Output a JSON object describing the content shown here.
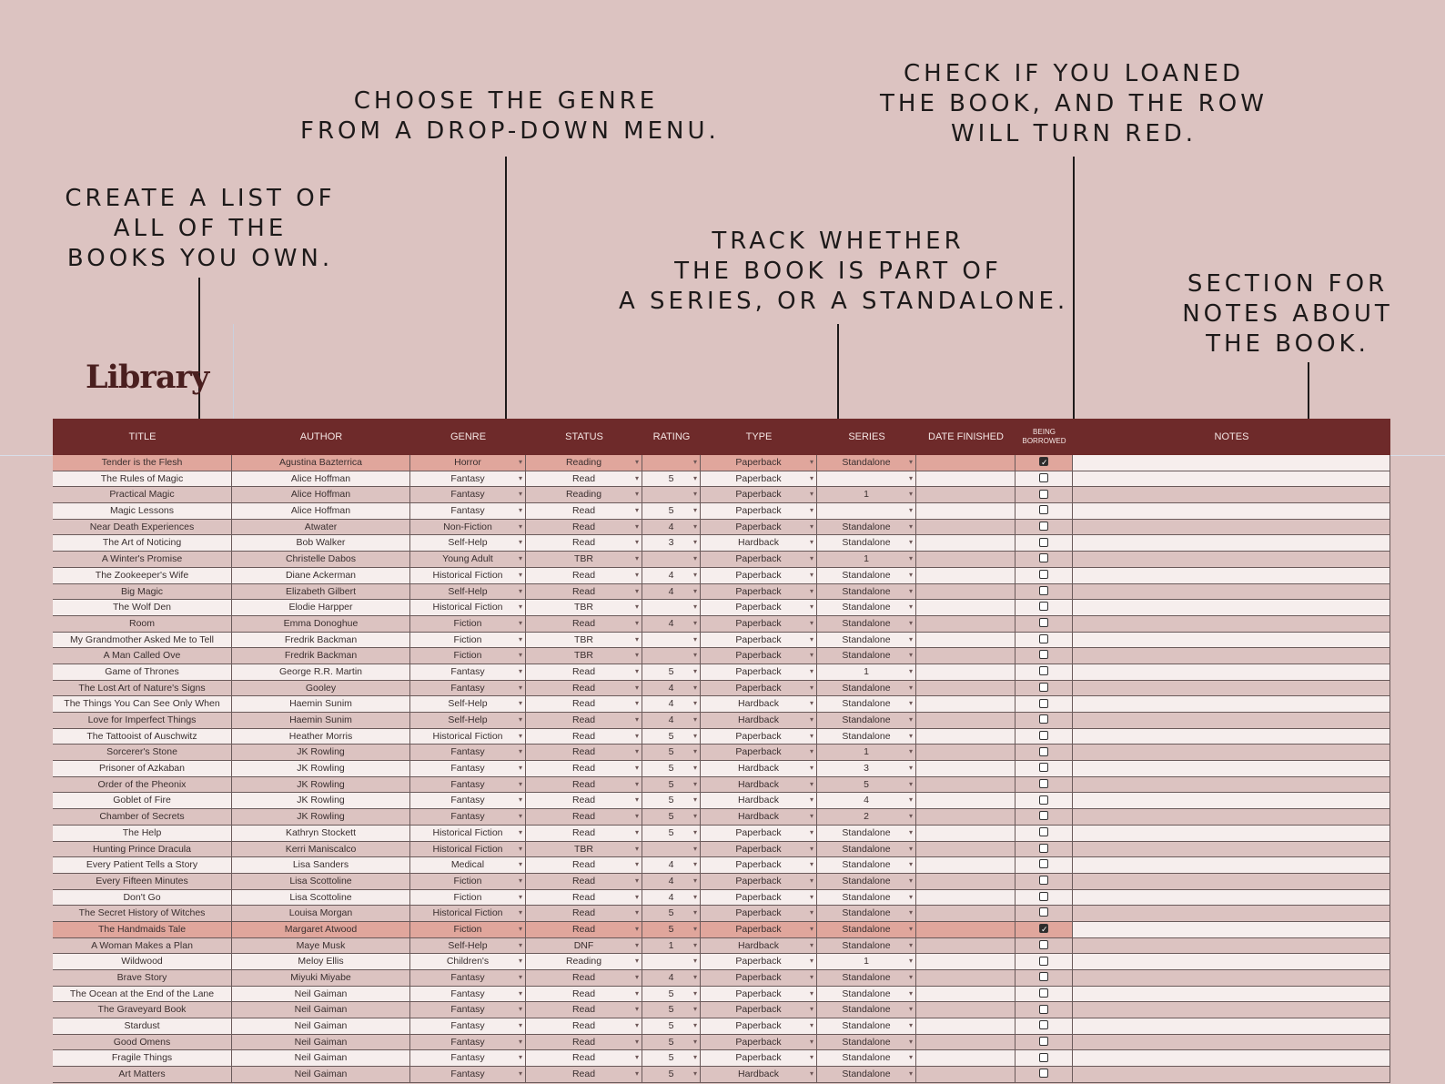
{
  "callouts": {
    "list": [
      "CREATE A LIST OF",
      "ALL OF THE",
      "BOOKS YOU OWN."
    ],
    "genre": [
      "CHOOSE THE GENRE",
      "FROM A DROP-DOWN MENU."
    ],
    "loan": [
      "CHECK IF YOU LOANED",
      "THE BOOK, AND THE ROW",
      "WILL TURN RED."
    ],
    "series": [
      "TRACK WHETHER",
      "THE BOOK IS PART OF",
      "A SERIES, OR A STANDALONE."
    ],
    "notes": [
      "SECTION FOR",
      "NOTES ABOUT",
      "THE BOOK."
    ]
  },
  "sheet_title": "Library",
  "columns": {
    "title": "TITLE",
    "author": "AUTHOR",
    "genre": "GENRE",
    "status": "STATUS",
    "rating": "RATING",
    "type": "TYPE",
    "series": "SERIES",
    "date": "DATE FINISHED",
    "borrowed": "BEING BORROWED",
    "notes": "NOTES"
  },
  "colors": {
    "header": "#6e2a2a",
    "loaned_row": "#e0a69c",
    "row_odd": "#dcc3c1",
    "row_even": "#f6eeed"
  },
  "rows": [
    {
      "title": "Tender is the Flesh",
      "author": "Agustina Bazterrica",
      "genre": "Horror",
      "status": "Reading",
      "rating": "",
      "type": "Paperback",
      "series": "Standalone",
      "date": "",
      "borrowed": true
    },
    {
      "title": "The Rules of Magic",
      "author": "Alice Hoffman",
      "genre": "Fantasy",
      "status": "Read",
      "rating": "5",
      "type": "Paperback",
      "series": "",
      "date": "",
      "borrowed": false
    },
    {
      "title": "Practical Magic",
      "author": "Alice Hoffman",
      "genre": "Fantasy",
      "status": "Reading",
      "rating": "",
      "type": "Paperback",
      "series": "1",
      "date": "",
      "borrowed": false
    },
    {
      "title": "Magic Lessons",
      "author": "Alice Hoffman",
      "genre": "Fantasy",
      "status": "Read",
      "rating": "5",
      "type": "Paperback",
      "series": "",
      "date": "",
      "borrowed": false
    },
    {
      "title": "Near Death Experiences",
      "author": "Atwater",
      "genre": "Non-Fiction",
      "status": "Read",
      "rating": "4",
      "type": "Paperback",
      "series": "Standalone",
      "date": "",
      "borrowed": false
    },
    {
      "title": "The Art of Noticing",
      "author": "Bob Walker",
      "genre": "Self-Help",
      "status": "Read",
      "rating": "3",
      "type": "Hardback",
      "series": "Standalone",
      "date": "",
      "borrowed": false
    },
    {
      "title": "A Winter's Promise",
      "author": "Christelle Dabos",
      "genre": "Young Adult",
      "status": "TBR",
      "rating": "",
      "type": "Paperback",
      "series": "1",
      "date": "",
      "borrowed": false
    },
    {
      "title": "The Zookeeper's Wife",
      "author": "Diane Ackerman",
      "genre": "Historical Fiction",
      "status": "Read",
      "rating": "4",
      "type": "Paperback",
      "series": "Standalone",
      "date": "",
      "borrowed": false
    },
    {
      "title": "Big Magic",
      "author": "Elizabeth Gilbert",
      "genre": "Self-Help",
      "status": "Read",
      "rating": "4",
      "type": "Paperback",
      "series": "Standalone",
      "date": "",
      "borrowed": false
    },
    {
      "title": "The Wolf Den",
      "author": "Elodie Harpper",
      "genre": "Historical Fiction",
      "status": "TBR",
      "rating": "",
      "type": "Paperback",
      "series": "Standalone",
      "date": "",
      "borrowed": false
    },
    {
      "title": "Room",
      "author": "Emma Donoghue",
      "genre": "Fiction",
      "status": "Read",
      "rating": "4",
      "type": "Paperback",
      "series": "Standalone",
      "date": "",
      "borrowed": false
    },
    {
      "title": "My Grandmother Asked Me to Tell",
      "author": "Fredrik Backman",
      "genre": "Fiction",
      "status": "TBR",
      "rating": "",
      "type": "Paperback",
      "series": "Standalone",
      "date": "",
      "borrowed": false
    },
    {
      "title": "A Man Called Ove",
      "author": "Fredrik Backman",
      "genre": "Fiction",
      "status": "TBR",
      "rating": "",
      "type": "Paperback",
      "series": "Standalone",
      "date": "",
      "borrowed": false
    },
    {
      "title": "Game of Thrones",
      "author": "George R.R. Martin",
      "genre": "Fantasy",
      "status": "Read",
      "rating": "5",
      "type": "Paperback",
      "series": "1",
      "date": "",
      "borrowed": false
    },
    {
      "title": "The Lost Art of Nature's Signs",
      "author": "Gooley",
      "genre": "Fantasy",
      "status": "Read",
      "rating": "4",
      "type": "Paperback",
      "series": "Standalone",
      "date": "",
      "borrowed": false
    },
    {
      "title": "The Things You Can See Only When",
      "author": "Haemin Sunim",
      "genre": "Self-Help",
      "status": "Read",
      "rating": "4",
      "type": "Hardback",
      "series": "Standalone",
      "date": "",
      "borrowed": false
    },
    {
      "title": "Love for Imperfect Things",
      "author": "Haemin Sunim",
      "genre": "Self-Help",
      "status": "Read",
      "rating": "4",
      "type": "Hardback",
      "series": "Standalone",
      "date": "",
      "borrowed": false
    },
    {
      "title": "The Tattooist of Auschwitz",
      "author": "Heather Morris",
      "genre": "Historical Fiction",
      "status": "Read",
      "rating": "5",
      "type": "Paperback",
      "series": "Standalone",
      "date": "",
      "borrowed": false
    },
    {
      "title": "Sorcerer's Stone",
      "author": "JK Rowling",
      "genre": "Fantasy",
      "status": "Read",
      "rating": "5",
      "type": "Paperback",
      "series": "1",
      "date": "",
      "borrowed": false
    },
    {
      "title": "Prisoner of Azkaban",
      "author": "JK Rowling",
      "genre": "Fantasy",
      "status": "Read",
      "rating": "5",
      "type": "Hardback",
      "series": "3",
      "date": "",
      "borrowed": false
    },
    {
      "title": "Order of the Pheonix",
      "author": "JK Rowling",
      "genre": "Fantasy",
      "status": "Read",
      "rating": "5",
      "type": "Hardback",
      "series": "5",
      "date": "",
      "borrowed": false
    },
    {
      "title": "Goblet of Fire",
      "author": "JK Rowling",
      "genre": "Fantasy",
      "status": "Read",
      "rating": "5",
      "type": "Hardback",
      "series": "4",
      "date": "",
      "borrowed": false
    },
    {
      "title": "Chamber of Secrets",
      "author": "JK Rowling",
      "genre": "Fantasy",
      "status": "Read",
      "rating": "5",
      "type": "Hardback",
      "series": "2",
      "date": "",
      "borrowed": false
    },
    {
      "title": "The Help",
      "author": "Kathryn Stockett",
      "genre": "Historical Fiction",
      "status": "Read",
      "rating": "5",
      "type": "Paperback",
      "series": "Standalone",
      "date": "",
      "borrowed": false
    },
    {
      "title": "Hunting Prince Dracula",
      "author": "Kerri Maniscalco",
      "genre": "Historical Fiction",
      "status": "TBR",
      "rating": "",
      "type": "Paperback",
      "series": "Standalone",
      "date": "",
      "borrowed": false
    },
    {
      "title": "Every Patient Tells a Story",
      "author": "Lisa Sanders",
      "genre": "Medical",
      "status": "Read",
      "rating": "4",
      "type": "Paperback",
      "series": "Standalone",
      "date": "",
      "borrowed": false
    },
    {
      "title": "Every Fifteen Minutes",
      "author": "Lisa Scottoline",
      "genre": "Fiction",
      "status": "Read",
      "rating": "4",
      "type": "Paperback",
      "series": "Standalone",
      "date": "",
      "borrowed": false
    },
    {
      "title": "Don't Go",
      "author": "Lisa Scottoline",
      "genre": "Fiction",
      "status": "Read",
      "rating": "4",
      "type": "Paperback",
      "series": "Standalone",
      "date": "",
      "borrowed": false
    },
    {
      "title": "The Secret History of Witches",
      "author": "Louisa Morgan",
      "genre": "Historical Fiction",
      "status": "Read",
      "rating": "5",
      "type": "Paperback",
      "series": "Standalone",
      "date": "",
      "borrowed": false
    },
    {
      "title": "The Handmaids Tale",
      "author": "Margaret Atwood",
      "genre": "Fiction",
      "status": "Read",
      "rating": "5",
      "type": "Paperback",
      "series": "Standalone",
      "date": "",
      "borrowed": true
    },
    {
      "title": "A Woman Makes a Plan",
      "author": "Maye Musk",
      "genre": "Self-Help",
      "status": "DNF",
      "rating": "1",
      "type": "Hardback",
      "series": "Standalone",
      "date": "",
      "borrowed": false
    },
    {
      "title": "Wildwood",
      "author": "Meloy Ellis",
      "genre": "Children's",
      "status": "Reading",
      "rating": "",
      "type": "Paperback",
      "series": "1",
      "date": "",
      "borrowed": false
    },
    {
      "title": "Brave Story",
      "author": "Miyuki Miyabe",
      "genre": "Fantasy",
      "status": "Read",
      "rating": "4",
      "type": "Paperback",
      "series": "Standalone",
      "date": "",
      "borrowed": false
    },
    {
      "title": "The Ocean at the End of the Lane",
      "author": "Neil Gaiman",
      "genre": "Fantasy",
      "status": "Read",
      "rating": "5",
      "type": "Paperback",
      "series": "Standalone",
      "date": "",
      "borrowed": false
    },
    {
      "title": "The Graveyard Book",
      "author": "Neil Gaiman",
      "genre": "Fantasy",
      "status": "Read",
      "rating": "5",
      "type": "Paperback",
      "series": "Standalone",
      "date": "",
      "borrowed": false
    },
    {
      "title": "Stardust",
      "author": "Neil Gaiman",
      "genre": "Fantasy",
      "status": "Read",
      "rating": "5",
      "type": "Paperback",
      "series": "Standalone",
      "date": "",
      "borrowed": false
    },
    {
      "title": "Good Omens",
      "author": "Neil Gaiman",
      "genre": "Fantasy",
      "status": "Read",
      "rating": "5",
      "type": "Paperback",
      "series": "Standalone",
      "date": "",
      "borrowed": false
    },
    {
      "title": "Fragile Things",
      "author": "Neil Gaiman",
      "genre": "Fantasy",
      "status": "Read",
      "rating": "5",
      "type": "Paperback",
      "series": "Standalone",
      "date": "",
      "borrowed": false
    },
    {
      "title": "Art Matters",
      "author": "Neil Gaiman",
      "genre": "Fantasy",
      "status": "Read",
      "rating": "5",
      "type": "Hardback",
      "series": "Standalone",
      "date": "",
      "borrowed": false
    }
  ]
}
